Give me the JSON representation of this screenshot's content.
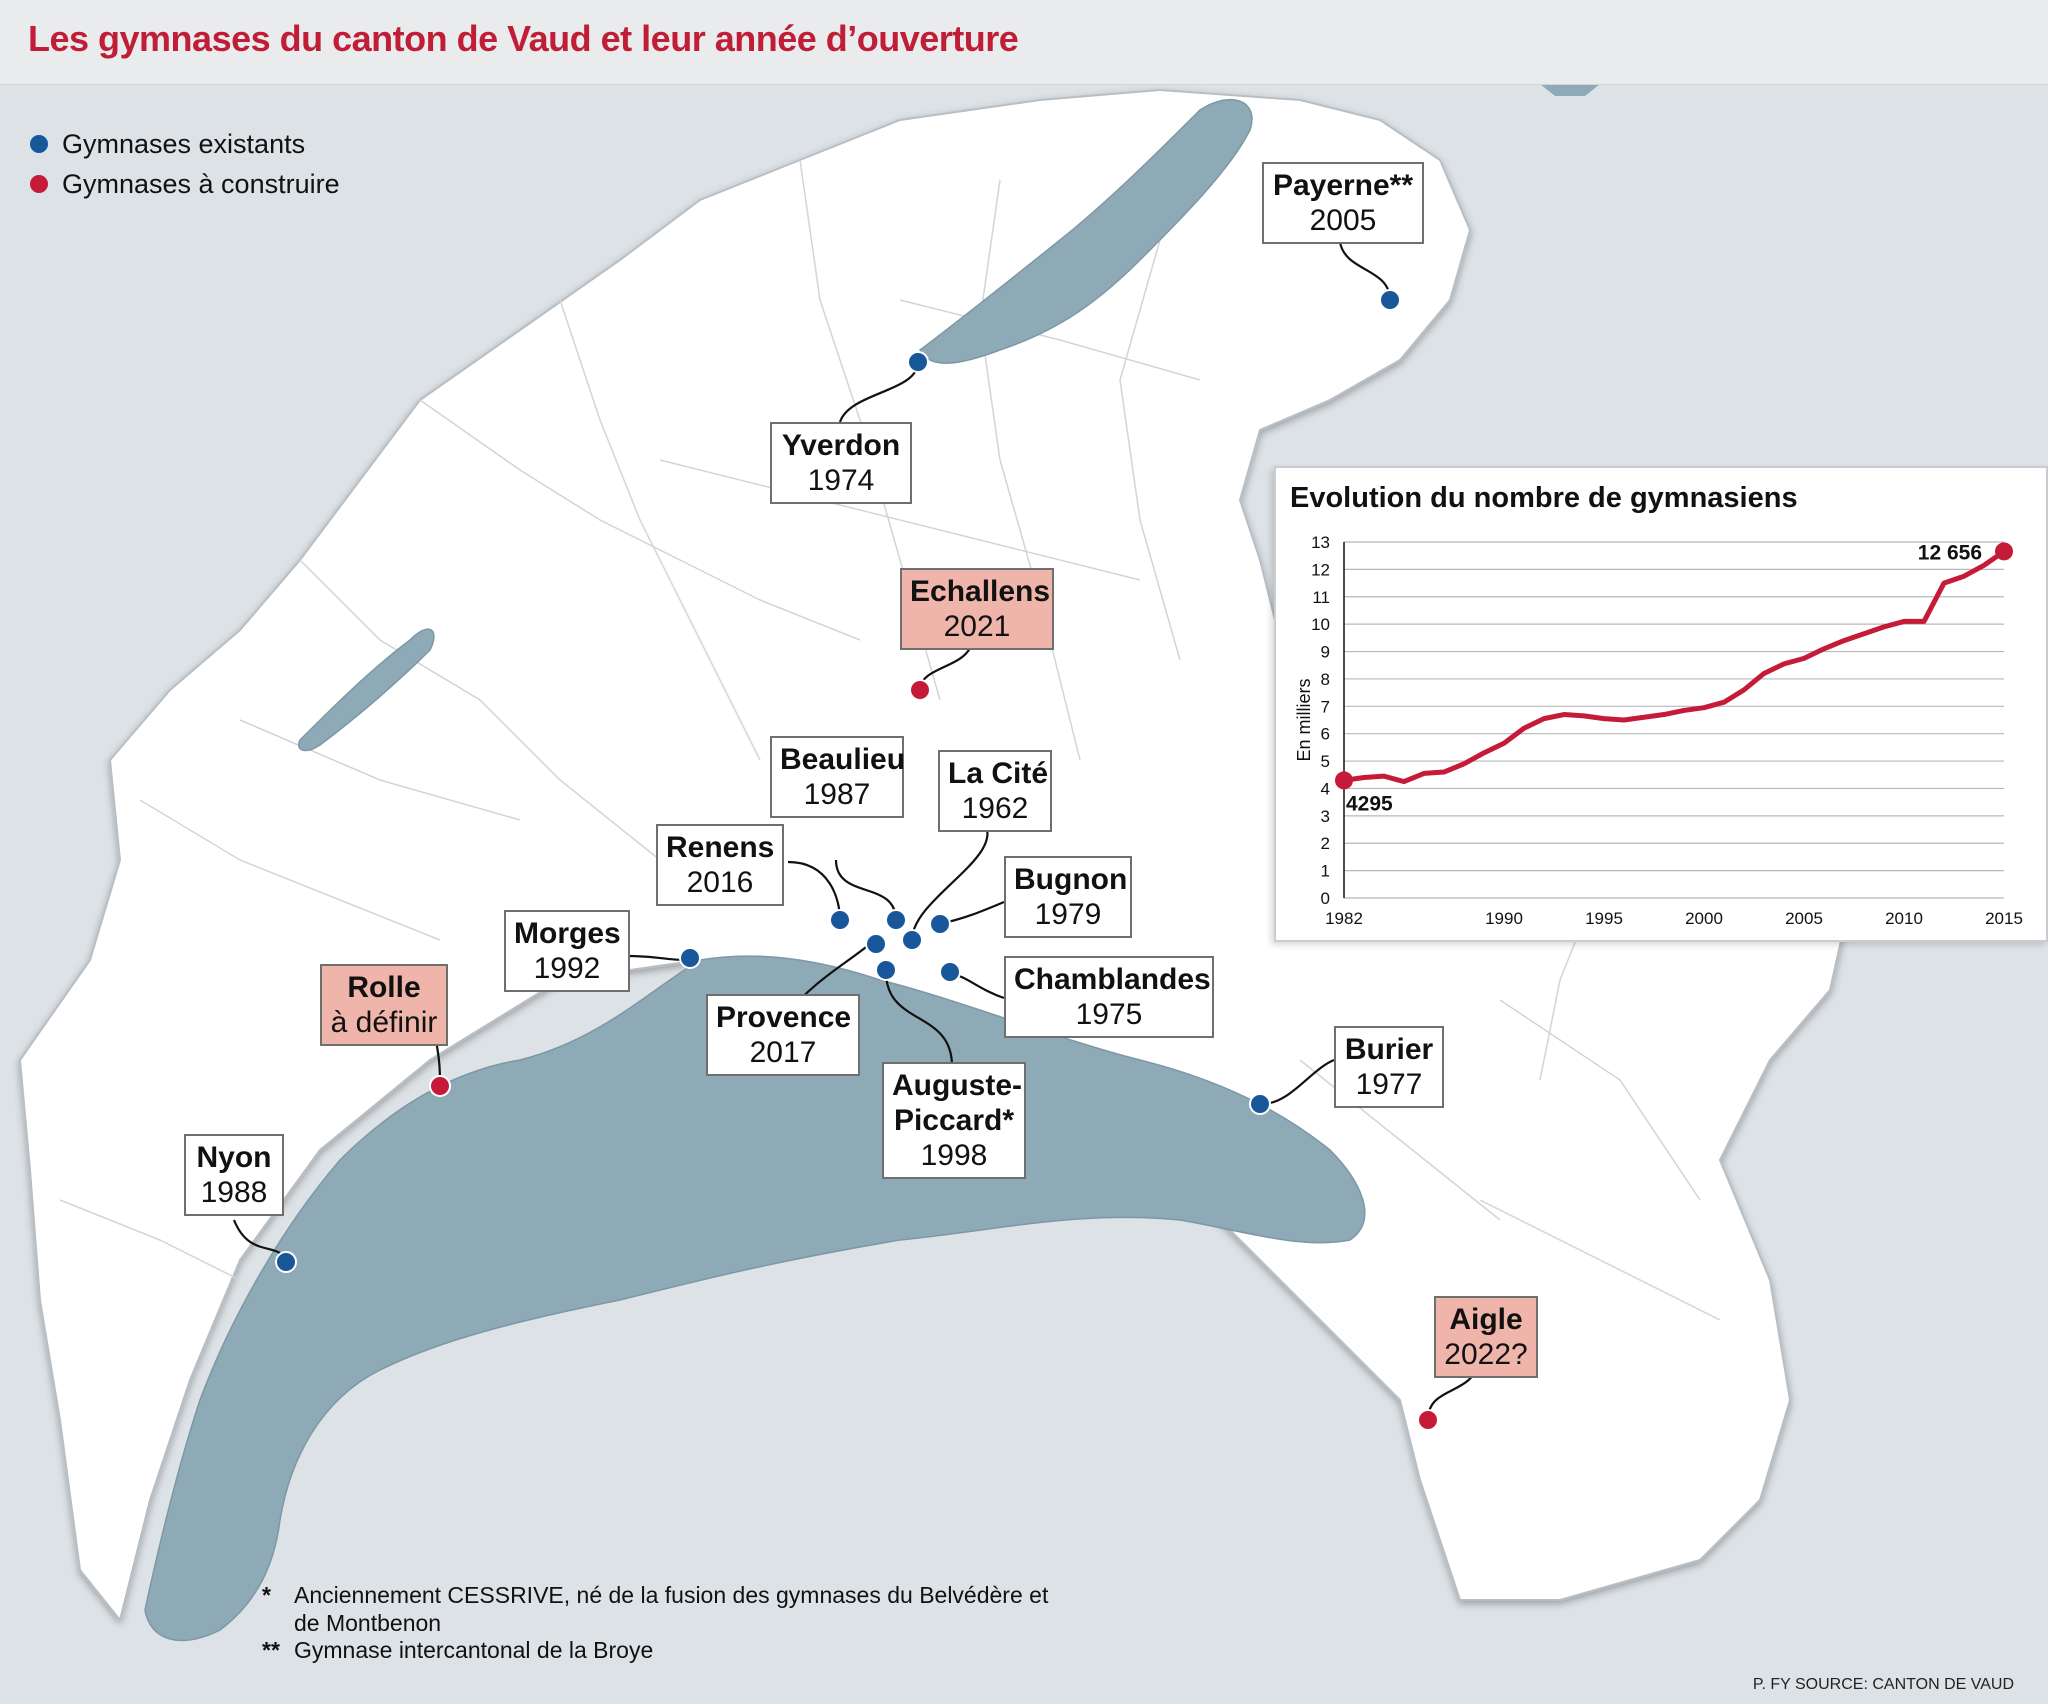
{
  "title": "Les gymnases du canton de Vaud et leur année d’ouverture",
  "colors": {
    "existing": "#17579a",
    "planned": "#c51b38",
    "lake": "#8faab7",
    "land": "#ffffff",
    "outside": "#dde2e6",
    "label_future": "#f0b5aa"
  },
  "legend": [
    {
      "label": "Gymnases existants",
      "color": "#17579a"
    },
    {
      "label": "Gymnases à construire",
      "color": "#c51b38"
    }
  ],
  "schools": [
    {
      "id": "payerne",
      "name": "Payerne**",
      "year": "2005",
      "status": "existing"
    },
    {
      "id": "yverdon",
      "name": "Yverdon",
      "year": "1974",
      "status": "existing"
    },
    {
      "id": "echallens",
      "name": "Echallens",
      "year": "2021",
      "status": "planned"
    },
    {
      "id": "beaulieu",
      "name": "Beaulieu",
      "year": "1987",
      "status": "existing"
    },
    {
      "id": "lacite",
      "name": "La Cité",
      "year": "1962",
      "status": "existing"
    },
    {
      "id": "renens",
      "name": "Renens",
      "year": "2016",
      "status": "existing"
    },
    {
      "id": "bugnon",
      "name": "Bugnon",
      "year": "1979",
      "status": "existing"
    },
    {
      "id": "morges",
      "name": "Morges",
      "year": "1992",
      "status": "existing"
    },
    {
      "id": "rolle",
      "name": "Rolle",
      "year": "à définir",
      "status": "planned"
    },
    {
      "id": "chamblandes",
      "name": "Chamblandes",
      "year": "1975",
      "status": "existing"
    },
    {
      "id": "provence",
      "name": "Provence",
      "year": "2017",
      "status": "existing"
    },
    {
      "id": "burier",
      "name": "Burier",
      "year": "1977",
      "status": "existing"
    },
    {
      "id": "auguste",
      "name": "Auguste-\nPiccard*",
      "year": "1998",
      "status": "existing"
    },
    {
      "id": "nyon",
      "name": "Nyon",
      "year": "1988",
      "status": "existing"
    },
    {
      "id": "aigle",
      "name": "Aigle",
      "year": "2022?",
      "status": "planned"
    }
  ],
  "notes": [
    {
      "mark": "*",
      "text": "Anciennement CESSRIVE, né de la fusion des gymnases du Belvédère et de Montbenon"
    },
    {
      "mark": "**",
      "text": "Gymnase intercantonal de la Broye"
    }
  ],
  "source": "P. FY SOURCE: CANTON DE VAUD",
  "chart_data": {
    "type": "line",
    "title": "Evolution du nombre de gymnasiens",
    "ylabel": "En milliers",
    "xlabel": "",
    "ylim": [
      0,
      13
    ],
    "xlim": [
      1982,
      2015
    ],
    "yticks": [
      0,
      1,
      2,
      3,
      4,
      5,
      6,
      7,
      8,
      9,
      10,
      11,
      12,
      13
    ],
    "xticks": [
      1982,
      1990,
      1995,
      2000,
      2005,
      2010,
      2015
    ],
    "grid": true,
    "color": "#c51b38",
    "series": [
      {
        "x": [
          1982,
          1983,
          1984,
          1985,
          1986,
          1987,
          1988,
          1989,
          1990,
          1991,
          1992,
          1993,
          1994,
          1995,
          1996,
          1997,
          1998,
          1999,
          2000,
          2001,
          2002,
          2003,
          2004,
          2005,
          2006,
          2007,
          2008,
          2009,
          2010,
          2011,
          2012,
          2013,
          2014,
          2015
        ],
        "values": [
          4.295,
          4.4,
          4.45,
          4.25,
          4.55,
          4.6,
          4.9,
          5.3,
          5.65,
          6.2,
          6.55,
          6.7,
          6.65,
          6.55,
          6.5,
          6.6,
          6.7,
          6.85,
          6.95,
          7.15,
          7.6,
          8.2,
          8.55,
          8.75,
          9.1,
          9.4,
          9.65,
          9.9,
          10.1,
          10.1,
          11.5,
          11.75,
          12.15,
          12.656
        ]
      }
    ],
    "annotations": [
      {
        "text": "4295",
        "x": 1982,
        "y": 4.295
      },
      {
        "text": "12 656",
        "x": 2015,
        "y": 12.656
      }
    ]
  }
}
